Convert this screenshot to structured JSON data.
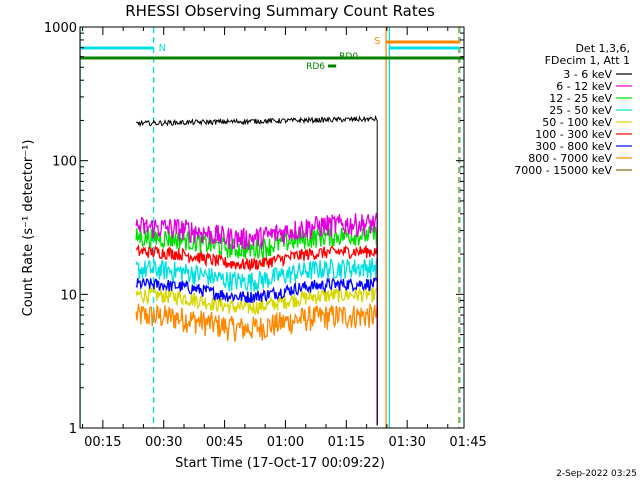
{
  "chart_data": {
    "type": "line",
    "title": "RHESSI Observing Summary Count Rates",
    "ylabel": "Count Rate (s⁻¹ detector⁻¹)",
    "xlabel": "Start Time (17-Oct-17 00:09:22)",
    "footer_date": "2-Sep-2022 03:25",
    "yscale": "log",
    "ylim": [
      1,
      1000
    ],
    "y_ticks": [
      {
        "value": 1,
        "label": "1"
      },
      {
        "value": 10,
        "label": "10"
      },
      {
        "value": 100,
        "label": "100"
      },
      {
        "value": 1000,
        "label": "1000"
      }
    ],
    "xlim_minutes": [
      9.37,
      104.0
    ],
    "x_ticks": [
      {
        "minute": 15,
        "label": "00:15"
      },
      {
        "minute": 30,
        "label": "00:30"
      },
      {
        "minute": 45,
        "label": "00:45"
      },
      {
        "minute": 60,
        "label": "01:00"
      },
      {
        "minute": 75,
        "label": "01:15"
      },
      {
        "minute": 90,
        "label": "01:30"
      },
      {
        "minute": 105,
        "label": "01:45"
      }
    ],
    "legend": {
      "header": [
        "Det 1,3,6,",
        "FDecim 1, Att 1"
      ],
      "position": "right"
    },
    "series": [
      {
        "name": "3 - 6 keV",
        "color": "#000000",
        "level_start": 190,
        "level_end": 205,
        "noise": 0.02,
        "dip": 0
      },
      {
        "name": "6 - 12 keV",
        "color": "#e000e0",
        "level_start": 32,
        "level_end": 34,
        "noise": 0.09,
        "dip": 0.2
      },
      {
        "name": "12 - 25 keV",
        "color": "#00e000",
        "level_start": 27,
        "level_end": 28,
        "noise": 0.08,
        "dip": 0.2
      },
      {
        "name": "25 - 50 keV",
        "color": "#00e0e0",
        "level_start": 15.5,
        "level_end": 16,
        "noise": 0.08,
        "dip": 0.2
      },
      {
        "name": "50 - 100 keV",
        "color": "#d8d800",
        "level_start": 10,
        "level_end": 10,
        "noise": 0.06,
        "dip": 0.2
      },
      {
        "name": "100 - 300 keV",
        "color": "#ff0000",
        "level_start": 21,
        "level_end": 21,
        "noise": 0.05,
        "dip": 0.2
      },
      {
        "name": "300 - 800 keV",
        "color": "#0000ff",
        "level_start": 12,
        "level_end": 12,
        "noise": 0.05,
        "dip": 0.2
      },
      {
        "name": "800 - 7000 keV",
        "color": "#ff8800",
        "level_start": 7,
        "level_end": 7,
        "noise": 0.1,
        "dip": 0.2
      },
      {
        "name": "7000 - 15000 keV",
        "color": "#8b6914",
        "level_start": 0,
        "level_end": 0,
        "noise": 0,
        "dip": 0
      }
    ],
    "data_interval_minutes": [
      23.2,
      82.6
    ],
    "markers": {
      "night_label": "N",
      "saa_label": "S",
      "rd0_label": "RD0",
      "rd6_label": "RD6",
      "night_intervals": [
        [
          9.4,
          27.5
        ],
        [
          85.6,
          102.7
        ]
      ],
      "saa_interval": [
        84.8,
        103.0
      ],
      "decimation_intervals": [
        [
          9.4,
          104.0
        ]
      ],
      "rd6_interval": [
        70.5,
        72.5
      ],
      "vertical_lines": [
        {
          "minute": 9.4,
          "color": "#00e0e0",
          "dashed": false
        },
        {
          "minute": 27.5,
          "color": "#00e0e0",
          "dashed": true
        },
        {
          "minute": 85.6,
          "color": "#00e0e0",
          "dashed": false
        },
        {
          "minute": 84.8,
          "color": "#ff8800",
          "dashed": false
        },
        {
          "minute": 102.7,
          "color": "#ff8800",
          "dashed": true
        },
        {
          "minute": 103.0,
          "color": "#00e0e0",
          "dashed": true
        }
      ]
    }
  }
}
